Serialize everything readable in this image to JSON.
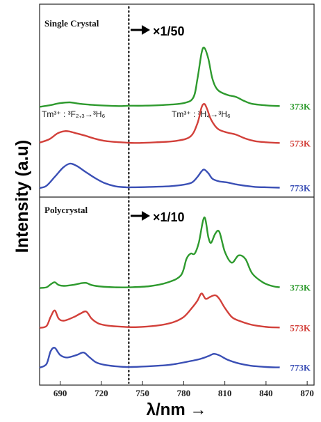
{
  "chart_data": [
    {
      "type": "line",
      "title": "Single Crystal",
      "xlabel": "λ/nm →",
      "ylabel": "Intensity (a.u)",
      "xlim": [
        675,
        875
      ],
      "x_ticks": [
        690,
        720,
        750,
        780,
        810,
        840,
        870
      ],
      "scale_note": "×1/50",
      "scale_note_from_x": 740,
      "annotations": [
        {
          "text": "Tm³⁺ : ³F₂,₃→³H₆",
          "x": 690
        },
        {
          "text": "Tm³⁺ : ³H₄→³H₆",
          "x": 795
        }
      ],
      "series": [
        {
          "name": "373K",
          "color": "#2e9a2e",
          "offset": 2.2,
          "x": [
            675,
            682,
            690,
            697,
            705,
            715,
            725,
            735,
            740,
            750,
            765,
            780,
            787,
            790,
            793,
            795,
            798,
            801,
            805,
            812,
            818,
            824,
            830,
            840,
            850
          ],
          "y": [
            0.0,
            0.04,
            0.1,
            0.12,
            0.08,
            0.05,
            0.03,
            0.02,
            0.03,
            0.03,
            0.05,
            0.1,
            0.25,
            0.75,
            1.45,
            1.6,
            1.3,
            0.75,
            0.45,
            0.32,
            0.27,
            0.16,
            0.08,
            0.04,
            0.02
          ]
        },
        {
          "name": "573K",
          "color": "#d2403a",
          "offset": 1.2,
          "x": [
            675,
            682,
            688,
            693,
            697,
            702,
            708,
            715,
            722,
            730,
            738,
            745,
            760,
            775,
            785,
            790,
            793,
            795,
            797,
            800,
            805,
            812,
            818,
            825,
            832,
            840,
            850
          ],
          "y": [
            0.03,
            0.12,
            0.28,
            0.34,
            0.33,
            0.28,
            0.22,
            0.14,
            0.08,
            0.05,
            0.03,
            0.02,
            0.04,
            0.08,
            0.2,
            0.55,
            0.98,
            1.08,
            0.95,
            0.65,
            0.4,
            0.3,
            0.25,
            0.14,
            0.07,
            0.04,
            0.02
          ]
        },
        {
          "name": "773K",
          "color": "#3a4fb5",
          "offset": 0.0,
          "x": [
            675,
            680,
            686,
            692,
            697,
            702,
            708,
            715,
            722,
            730,
            738,
            742,
            755,
            770,
            780,
            786,
            790,
            793,
            795,
            798,
            801,
            806,
            812,
            818,
            825,
            832,
            840,
            850
          ],
          "y": [
            0.0,
            0.06,
            0.3,
            0.55,
            0.66,
            0.6,
            0.45,
            0.28,
            0.14,
            0.05,
            0.02,
            0.02,
            0.03,
            0.05,
            0.09,
            0.15,
            0.3,
            0.45,
            0.5,
            0.4,
            0.25,
            0.18,
            0.15,
            0.1,
            0.06,
            0.03,
            0.02,
            0.01
          ]
        }
      ]
    },
    {
      "type": "line",
      "title": "Polycrystal",
      "xlabel": "λ/nm →",
      "ylabel": "Intensity (a.u)",
      "xlim": [
        675,
        875
      ],
      "x_ticks": [
        690,
        720,
        750,
        780,
        810,
        840,
        870
      ],
      "scale_note": "×1/10",
      "scale_note_from_x": 740,
      "series": [
        {
          "name": "373K",
          "color": "#2e9a2e",
          "offset": 2.2,
          "x": [
            675,
            680,
            683,
            686,
            689,
            693,
            700,
            705,
            709,
            713,
            720,
            730,
            740,
            755,
            768,
            778,
            782,
            785,
            788,
            791,
            795,
            798,
            800,
            803,
            806,
            810,
            815,
            820,
            825,
            830,
            838,
            845,
            850
          ],
          "y": [
            0.0,
            0.02,
            0.1,
            0.16,
            0.08,
            0.06,
            0.09,
            0.13,
            0.14,
            0.08,
            0.04,
            0.02,
            0.02,
            0.05,
            0.15,
            0.35,
            0.8,
            0.95,
            0.95,
            1.25,
            1.95,
            1.4,
            1.25,
            1.5,
            1.55,
            1.0,
            0.7,
            0.9,
            0.8,
            0.4,
            0.15,
            0.05,
            0.02
          ]
        },
        {
          "name": "573K",
          "color": "#d2403a",
          "offset": 1.1,
          "x": [
            675,
            680,
            683,
            686,
            689,
            693,
            700,
            705,
            709,
            713,
            718,
            725,
            735,
            745,
            760,
            772,
            780,
            786,
            790,
            793,
            796,
            799,
            803,
            806,
            810,
            815,
            820,
            828,
            835,
            842,
            850
          ],
          "y": [
            0.0,
            0.05,
            0.3,
            0.48,
            0.25,
            0.2,
            0.3,
            0.4,
            0.45,
            0.25,
            0.12,
            0.06,
            0.03,
            0.02,
            0.06,
            0.15,
            0.3,
            0.55,
            0.75,
            0.95,
            0.8,
            0.85,
            0.9,
            0.8,
            0.55,
            0.3,
            0.2,
            0.1,
            0.05,
            0.02,
            0.01
          ]
        },
        {
          "name": "773K",
          "color": "#3a4fb5",
          "offset": 0.0,
          "x": [
            675,
            680,
            683,
            686,
            690,
            695,
            702,
            707,
            711,
            716,
            722,
            730,
            738,
            742,
            755,
            770,
            782,
            792,
            798,
            802,
            806,
            812,
            820,
            828,
            836,
            845,
            850
          ],
          "y": [
            0.0,
            0.1,
            0.45,
            0.55,
            0.35,
            0.28,
            0.35,
            0.42,
            0.3,
            0.15,
            0.08,
            0.04,
            0.02,
            0.02,
            0.04,
            0.08,
            0.16,
            0.24,
            0.32,
            0.38,
            0.34,
            0.22,
            0.12,
            0.06,
            0.03,
            0.01,
            0.01
          ]
        }
      ]
    }
  ]
}
